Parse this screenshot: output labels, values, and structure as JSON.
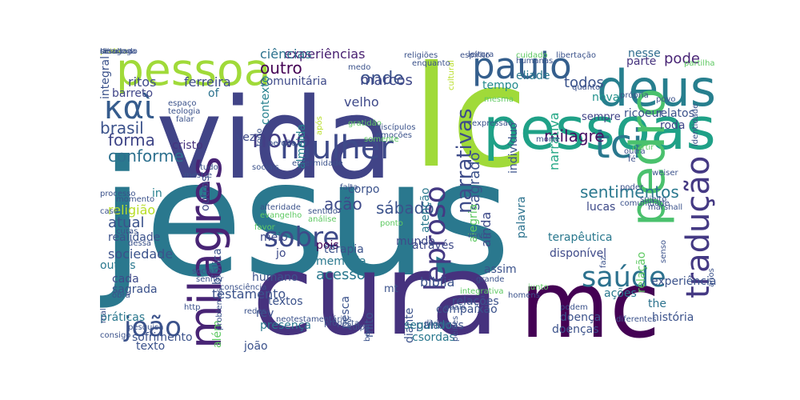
{
  "words": [
    {
      "text": "jesus",
      "color": "#2a788e"
    },
    {
      "text": "lc",
      "color": "#a0da39"
    },
    {
      "text": "cura",
      "color": "#46327e"
    },
    {
      "text": "vida",
      "color": "#414487"
    },
    {
      "text": "mc",
      "color": "#440154"
    },
    {
      "text": "pessoas",
      "color": "#1fa187"
    },
    {
      "text": "deus",
      "color": "#277f8e"
    },
    {
      "text": "pessoa",
      "color": "#a0da39"
    },
    {
      "text": "καὶ",
      "color": "#365c8d"
    },
    {
      "text": "tci",
      "color": "#2a788e"
    },
    {
      "text": "pedro",
      "color": "#4ac16d"
    },
    {
      "text": "paulo",
      "color": "#355f8d"
    },
    {
      "text": "milagres",
      "color": "#482475"
    },
    {
      "text": "tradução",
      "color": "#443983"
    },
    {
      "text": "mulher",
      "color": "#3e4a89"
    },
    {
      "text": "saúde",
      "color": "#2c718e"
    },
    {
      "text": "novo",
      "color": "#433e85"
    },
    {
      "text": "sobre",
      "color": "#3e4a89"
    },
    {
      "text": "leproso",
      "color": "#443983"
    },
    {
      "text": "joão",
      "color": "#3b528b"
    },
    {
      "text": "narrativas",
      "color": "#3e4c8a"
    },
    {
      "text": "milagre",
      "color": "#471063"
    },
    {
      "text": "conforme",
      "color": "#2d708e"
    },
    {
      "text": "forma",
      "color": "#404688"
    },
    {
      "text": "brasil",
      "color": "#3b528b"
    },
    {
      "text": "experiências",
      "color": "#482071"
    },
    {
      "text": "ciências",
      "color": "#2c728e"
    },
    {
      "text": "comunitária",
      "color": "#3e4a89"
    },
    {
      "text": "onde",
      "color": "#3b528b"
    },
    {
      "text": "outro",
      "color": "#440154"
    },
    {
      "text": "marcos",
      "color": "#3f4889"
    },
    {
      "text": "todos",
      "color": "#3b528b"
    },
    {
      "text": "pode",
      "color": "#482475"
    },
    {
      "text": "parte",
      "color": "#46337e"
    },
    {
      "text": "nesse",
      "color": "#2f6c8e"
    },
    {
      "text": "sempre",
      "color": "#414487"
    },
    {
      "text": "ritos",
      "color": "#3e4a89"
    },
    {
      "text": "ferreira",
      "color": "#3e4a89"
    },
    {
      "text": "barreto",
      "color": "#404588"
    },
    {
      "text": "of",
      "color": "#2c728e"
    },
    {
      "text": "velho",
      "color": "#3e4989"
    },
    {
      "text": "eliade",
      "color": "#2a788e"
    },
    {
      "text": "tempo",
      "color": "#238a8d"
    },
    {
      "text": "nova",
      "color": "#21918c"
    },
    {
      "text": "ricoeur",
      "color": "#3b528b"
    },
    {
      "text": "relatos",
      "color": "#3b528b"
    },
    {
      "text": "roda",
      "color": "#3f4788"
    },
    {
      "text": "cristo",
      "color": "#46327e"
    },
    {
      "text": "vez",
      "color": "#3e4989"
    },
    {
      "text": "almeida",
      "color": "#25838e"
    },
    {
      "text": "contexto",
      "color": "#26818e"
    },
    {
      "text": "indivíduo",
      "color": "#3b528b"
    },
    {
      "text": "sagrado",
      "color": "#3b528b"
    },
    {
      "text": "narrativa",
      "color": "#22a785"
    },
    {
      "text": "sentimentos",
      "color": "#2a788e"
    },
    {
      "text": "lucas",
      "color": "#3e4a89"
    },
    {
      "text": "sábado",
      "color": "#3b528b"
    },
    {
      "text": "através",
      "color": "#3e4a89"
    },
    {
      "text": "pois",
      "color": "#440154"
    },
    {
      "text": "mundo",
      "color": "#3e4a89"
    },
    {
      "text": "corpo",
      "color": "#3b528b"
    },
    {
      "text": "meio",
      "color": "#3e4a89"
    },
    {
      "text": "jo",
      "color": "#3e4a89"
    },
    {
      "text": "ação",
      "color": "#3e4a89"
    },
    {
      "text": "in",
      "color": "#277f8e"
    },
    {
      "text": "religião",
      "color": "#b8de29"
    },
    {
      "text": "atual",
      "color": "#3b528b"
    },
    {
      "text": "outros",
      "color": "#3e4a89"
    },
    {
      "text": "realidade",
      "color": "#3b528b"
    },
    {
      "text": "sociedade",
      "color": "#3b528b"
    },
    {
      "text": "outras",
      "color": "#2a788e"
    },
    {
      "text": "terapia",
      "color": "#3b528b"
    },
    {
      "text": "memória",
      "color": "#2a788e"
    },
    {
      "text": "ainda",
      "color": "#3e4a89"
    },
    {
      "text": "palavra",
      "color": "#2c728e"
    },
    {
      "text": "alegria",
      "color": "#5ec962"
    },
    {
      "text": "atenção",
      "color": "#2a788e"
    },
    {
      "text": "terapêutica",
      "color": "#2a788e"
    },
    {
      "text": "disponível",
      "color": "#3e4a89"
    },
    {
      "text": "assim",
      "color": "#3b528b"
    },
    {
      "text": "relação",
      "color": "#5ec962"
    },
    {
      "text": "cada",
      "color": "#3e4a89"
    },
    {
      "text": "sagrada",
      "color": "#3b528b"
    },
    {
      "text": "humano",
      "color": "#3b528b"
    },
    {
      "text": "acesso",
      "color": "#2a788e"
    },
    {
      "text": "bíblia",
      "color": "#3b528b"
    },
    {
      "text": "experiência",
      "color": "#3b528b"
    },
    {
      "text": "testamento",
      "color": "#3b528b"
    },
    {
      "text": "bíblica",
      "color": "#3b528b"
    },
    {
      "text": "mt",
      "color": "#3b528b"
    },
    {
      "text": "textos",
      "color": "#3b528b"
    },
    {
      "text": "rev",
      "color": "#3b528b"
    },
    {
      "text": "presença",
      "color": "#2a788e"
    },
    {
      "text": "compaixão",
      "color": "#3b528b"
    },
    {
      "text": "relações",
      "color": "#3b528b"
    },
    {
      "text": "the",
      "color": "#2c728e"
    },
    {
      "text": "história",
      "color": "#3b528b"
    },
    {
      "text": "doença",
      "color": "#3b528b"
    },
    {
      "text": "doenças",
      "color": "#3b528b"
    },
    {
      "text": "ações",
      "color": "#2a788e"
    },
    {
      "text": "práticas",
      "color": "#2a788e"
    },
    {
      "text": "além",
      "color": "#5ec962"
    },
    {
      "text": "sofrimento",
      "color": "#3b528b"
    },
    {
      "text": "texto",
      "color": "#3b528b"
    },
    {
      "text": "joão",
      "color": "#3b528b"
    },
    {
      "text": "mito",
      "color": "#3b528b"
    },
    {
      "text": "pesca",
      "color": "#3b528b"
    },
    {
      "text": "diante",
      "color": "#3b528b"
    },
    {
      "text": "palavras",
      "color": "#3b528b"
    },
    {
      "text": "segundo",
      "color": "#2a788e"
    },
    {
      "text": "csordas",
      "color": "#2a788e"
    },
    {
      "text": "integral",
      "color": "#3b528b"
    },
    {
      "text": "espaço",
      "color": "#3b528b"
    },
    {
      "text": "teologia",
      "color": "#3b528b"
    },
    {
      "text": "falar",
      "color": "#3b528b"
    },
    {
      "text": "perdão",
      "color": "#3b528b"
    },
    {
      "text": "após",
      "color": "#b8de29"
    },
    {
      "text": "cultural",
      "color": "#b8de29"
    },
    {
      "text": "gratidão",
      "color": "#5ec962"
    },
    {
      "text": "discípulos",
      "color": "#3b528b"
    },
    {
      "text": "emoções",
      "color": "#3b528b"
    },
    {
      "text": "somente",
      "color": "#5ec962"
    },
    {
      "text": "mesma",
      "color": "#5ec962"
    },
    {
      "text": "expressão",
      "color": "#3b528b"
    },
    {
      "text": "morte",
      "color": "#3b528b"
    },
    {
      "text": "outra",
      "color": "#3b528b"
    },
    {
      "text": "fé",
      "color": "#3b528b"
    },
    {
      "text": "partir",
      "color": "#5ec962"
    },
    {
      "text": "própria",
      "color": "#3b528b"
    },
    {
      "text": "povo",
      "color": "#3b528b"
    },
    {
      "text": "leitura",
      "color": "#3b528b"
    },
    {
      "text": "cuidado",
      "color": "#5ec962"
    },
    {
      "text": "identidade",
      "color": "#3b528b"
    },
    {
      "text": "humanas",
      "color": "#3b528b"
    },
    {
      "text": "libertação",
      "color": "#3b528b"
    },
    {
      "text": "partilha",
      "color": "#5ec962"
    },
    {
      "text": "religiões",
      "color": "#3b528b"
    },
    {
      "text": "enquanto",
      "color": "#3b528b"
    },
    {
      "text": "medo",
      "color": "#3b528b"
    },
    {
      "text": "quanto",
      "color": "#3b528b"
    },
    {
      "text": "todo",
      "color": "#3b528b"
    },
    {
      "text": "tudo",
      "color": "#3b528b"
    },
    {
      "text": "sociais",
      "color": "#3b528b"
    },
    {
      "text": "enfermidade",
      "color": "#3b528b"
    },
    {
      "text": "mestre",
      "color": "#3b528b"
    },
    {
      "text": "processo",
      "color": "#3b528b"
    },
    {
      "text": "caso",
      "color": "#3b528b"
    },
    {
      "text": "alteridade",
      "color": "#3b528b"
    },
    {
      "text": "evangelho",
      "color": "#5ec962"
    },
    {
      "text": "sentido",
      "color": "#3b528b"
    },
    {
      "text": "análise",
      "color": "#5ec962"
    },
    {
      "text": "momento",
      "color": "#3b528b"
    },
    {
      "text": "curas",
      "color": "#3b528b"
    },
    {
      "text": "dessa",
      "color": "#3b528b"
    },
    {
      "text": "falta",
      "color": "#3b528b"
    },
    {
      "text": "favor",
      "color": "#5ec962"
    },
    {
      "text": "ponto",
      "color": "#5ec962"
    },
    {
      "text": "poder",
      "color": "#3b528b"
    },
    {
      "text": "sujeito",
      "color": "#3b528b"
    },
    {
      "text": "marshall",
      "color": "#3b528b"
    },
    {
      "text": "novos",
      "color": "#3b528b"
    },
    {
      "text": "social",
      "color": "#3b528b"
    },
    {
      "text": "senhor",
      "color": "#3b528b"
    },
    {
      "text": "consciência",
      "color": "#3b528b"
    },
    {
      "text": "obra",
      "color": "#3b528b"
    },
    {
      "text": "http",
      "color": "#3b528b"
    },
    {
      "text": "mal",
      "color": "#3b528b"
    },
    {
      "text": "pesquisa",
      "color": "#3b528b"
    },
    {
      "text": "problemas",
      "color": "#3b528b"
    },
    {
      "text": "redes",
      "color": "#3b528b"
    },
    {
      "text": "neotestamentários",
      "color": "#3b528b"
    },
    {
      "text": "proposta",
      "color": "#3b528b"
    },
    {
      "text": "culpa",
      "color": "#3b528b"
    },
    {
      "text": "bem",
      "color": "#3b528b"
    },
    {
      "text": "divino",
      "color": "#3b528b"
    },
    {
      "text": "quais",
      "color": "#3b528b"
    },
    {
      "text": "peixes",
      "color": "#3b528b"
    },
    {
      "text": "homens",
      "color": "#3b528b"
    },
    {
      "text": "integrativa",
      "color": "#5ec962"
    },
    {
      "text": "grande",
      "color": "#3b528b"
    },
    {
      "text": "junto",
      "color": "#5ec962"
    },
    {
      "text": "podem",
      "color": "#3b528b"
    },
    {
      "text": "diferentes",
      "color": "#3b528b"
    },
    {
      "text": "consigo",
      "color": "#3b528b"
    },
    {
      "text": "faz",
      "color": "#3b528b"
    },
    {
      "text": "anos",
      "color": "#3b528b"
    },
    {
      "text": "senso",
      "color": "#3b528b"
    },
    {
      "text": "espírito",
      "color": "#3b528b"
    },
    {
      "text": "weiser",
      "color": "#3b528b"
    },
    {
      "text": "comunidade",
      "color": "#3b528b"
    },
    {
      "text": "humana",
      "color": "#3b528b"
    },
    {
      "text": "prática",
      "color": "#b8de29"
    },
    {
      "text": "sinagoga",
      "color": "#3b528b"
    },
    {
      "text": "resultado",
      "color": "#3b528b"
    },
    {
      "text": "dê",
      "color": "#3b528b"
    },
    {
      "text": "si",
      "color": "#3b528b"
    }
  ]
}
